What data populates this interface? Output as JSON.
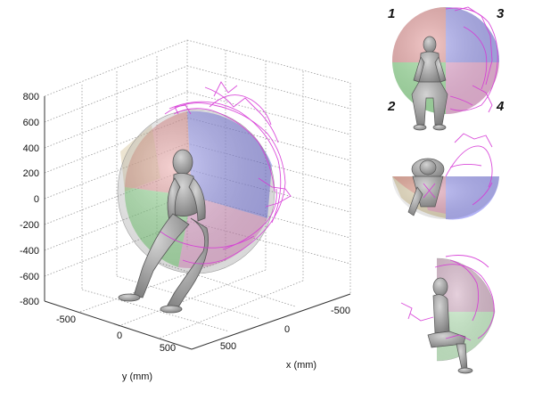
{
  "axes": {
    "z_ticks": [
      "800",
      "600",
      "400",
      "200",
      "0",
      "-200",
      "-400",
      "-600",
      "-800"
    ],
    "y_ticks": [
      "-500",
      "0",
      "500"
    ],
    "x_ticks": [
      "-500",
      "0",
      "500"
    ],
    "y_label": "y (mm)",
    "x_label": "x (mm)"
  },
  "quadrant_labels": [
    "1",
    "2",
    "3",
    "4"
  ],
  "colors": {
    "q1": "#e07a7a",
    "q2": "#6fd36f",
    "q3": "#8080f0",
    "q4": "#e88fc8",
    "trajectory": "#d63ad6",
    "figure": "#9a9a9a"
  }
}
